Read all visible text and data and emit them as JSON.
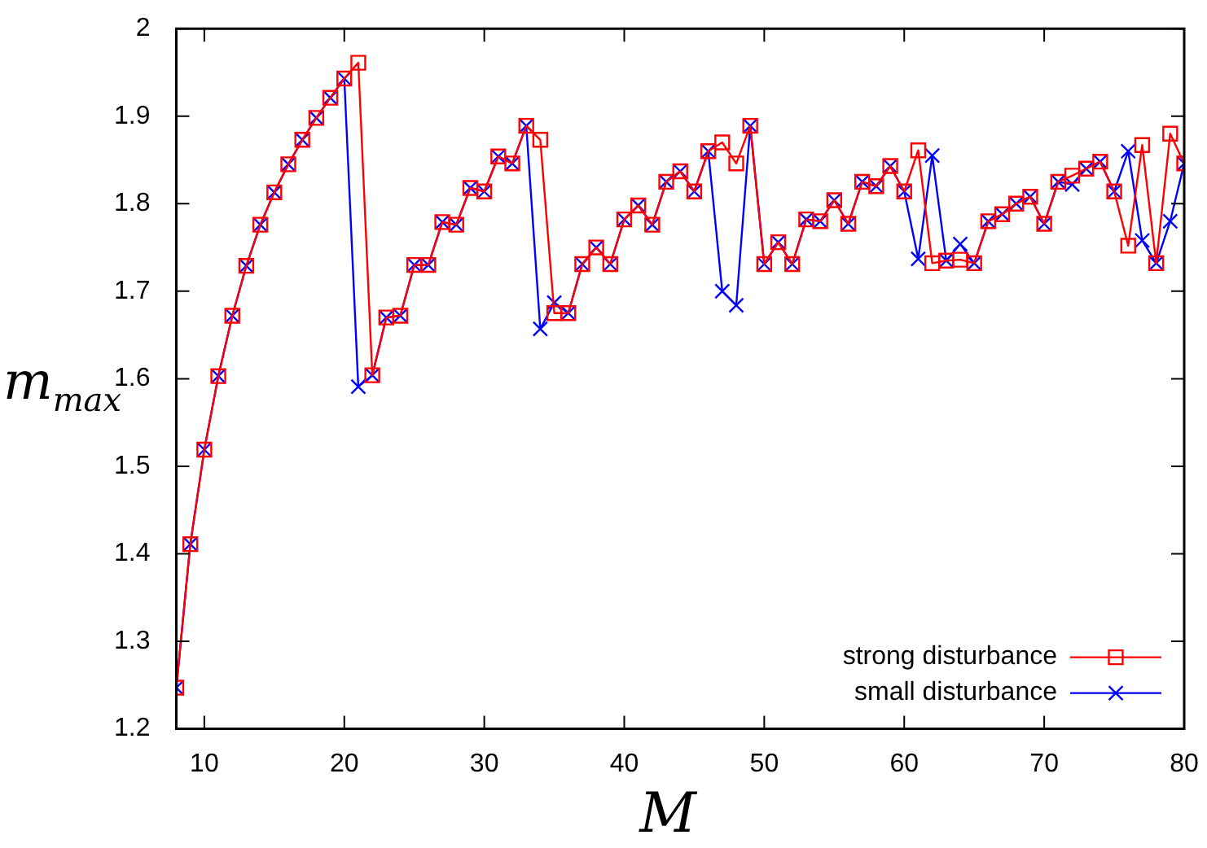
{
  "chart_data": {
    "type": "line",
    "xlabel": "M",
    "ylabel": "m$_{max}$",
    "x": [
      8,
      9,
      10,
      11,
      12,
      13,
      14,
      15,
      16,
      17,
      18,
      19,
      20,
      21,
      22,
      23,
      24,
      25,
      26,
      27,
      28,
      29,
      30,
      31,
      32,
      33,
      34,
      35,
      36,
      37,
      38,
      39,
      40,
      41,
      42,
      43,
      44,
      45,
      46,
      47,
      48,
      49,
      50,
      51,
      52,
      53,
      54,
      55,
      56,
      57,
      58,
      59,
      60,
      61,
      62,
      63,
      64,
      65,
      66,
      67,
      68,
      69,
      70,
      71,
      72,
      73,
      74,
      75,
      76,
      77,
      78,
      79,
      80
    ],
    "series": [
      {
        "name": "strong disturbance",
        "color": "#ff0000",
        "marker": "square",
        "values": [
          1.247,
          1.411,
          1.519,
          1.603,
          1.672,
          1.729,
          1.776,
          1.813,
          1.845,
          1.873,
          1.898,
          1.921,
          1.943,
          1.961,
          1.604,
          1.67,
          1.672,
          1.73,
          1.73,
          1.779,
          1.776,
          1.818,
          1.814,
          1.854,
          1.846,
          1.889,
          1.873,
          1.675,
          1.675,
          1.731,
          1.75,
          1.731,
          1.782,
          1.798,
          1.776,
          1.825,
          1.837,
          1.814,
          1.86,
          1.87,
          1.846,
          1.889,
          1.731,
          1.756,
          1.731,
          1.782,
          1.78,
          1.804,
          1.777,
          1.825,
          1.82,
          1.843,
          1.814,
          1.861,
          1.732,
          1.735,
          1.736,
          1.732,
          1.78,
          1.788,
          1.8,
          1.808,
          1.777,
          1.825,
          1.832,
          1.84,
          1.848,
          1.814,
          1.752,
          1.867,
          1.732,
          1.88,
          1.846
        ]
      },
      {
        "name": "small disturbance",
        "color": "#0000ff",
        "marker": "cross",
        "values": [
          1.247,
          1.411,
          1.519,
          1.603,
          1.672,
          1.729,
          1.776,
          1.813,
          1.845,
          1.873,
          1.898,
          1.921,
          1.943,
          1.591,
          1.604,
          1.67,
          1.672,
          1.73,
          1.73,
          1.779,
          1.776,
          1.818,
          1.814,
          1.854,
          1.846,
          1.889,
          1.657,
          1.687,
          1.675,
          1.731,
          1.75,
          1.731,
          1.782,
          1.798,
          1.776,
          1.825,
          1.837,
          1.814,
          1.86,
          1.7,
          1.684,
          1.889,
          1.731,
          1.756,
          1.731,
          1.782,
          1.78,
          1.804,
          1.777,
          1.825,
          1.82,
          1.843,
          1.814,
          1.737,
          1.855,
          1.735,
          1.754,
          1.732,
          1.78,
          1.788,
          1.8,
          1.808,
          1.777,
          1.825,
          1.822,
          1.84,
          1.848,
          1.814,
          1.86,
          1.758,
          1.732,
          1.78,
          1.846
        ]
      }
    ],
    "xlim": [
      8,
      80
    ],
    "xticks": [
      10,
      20,
      30,
      40,
      50,
      60,
      70,
      80
    ],
    "ylim": [
      1.2,
      2
    ],
    "yticks": [
      1.2,
      1.3,
      1.4,
      1.5,
      1.6,
      1.7,
      1.8,
      1.9,
      2
    ],
    "grid": false,
    "legend": "bottom right"
  }
}
